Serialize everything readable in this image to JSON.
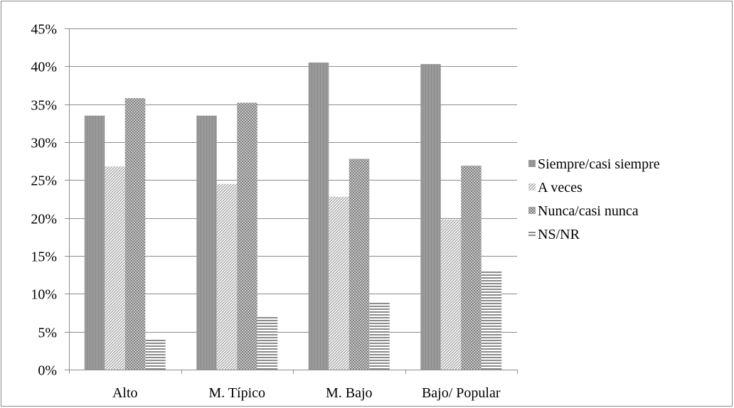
{
  "chart_data": {
    "type": "bar",
    "title": "",
    "xlabel": "",
    "ylabel": "",
    "categories": [
      "Alto",
      "M. Típico",
      "M. Bajo",
      "Bajo/ Popular"
    ],
    "series": [
      {
        "name": "Siempre/casi siempre",
        "values": [
          33.5,
          33.5,
          40.5,
          40.3
        ],
        "pattern": "solid-gray"
      },
      {
        "name": "A veces",
        "values": [
          26.8,
          24.5,
          22.8,
          19.8
        ],
        "pattern": "diagonal"
      },
      {
        "name": "Nunca/casi nunca",
        "values": [
          35.8,
          35.2,
          27.8,
          26.9
        ],
        "pattern": "checker"
      },
      {
        "name": "NS/NR",
        "values": [
          4.0,
          7.0,
          9.0,
          13.0
        ],
        "pattern": "horizontal"
      }
    ],
    "ylim": [
      0,
      45
    ],
    "yticks": [
      0,
      5,
      10,
      15,
      20,
      25,
      30,
      35,
      40,
      45
    ],
    "ytick_labels": [
      "0%",
      "5%",
      "10%",
      "15%",
      "20%",
      "25%",
      "30%",
      "35%",
      "40%",
      "45%"
    ],
    "grid": true,
    "legend_position": "right"
  },
  "colors": {
    "gridline": "#8c8c8c",
    "bar_dark": "#8c8c8c",
    "bar_light": "#ffffff"
  }
}
